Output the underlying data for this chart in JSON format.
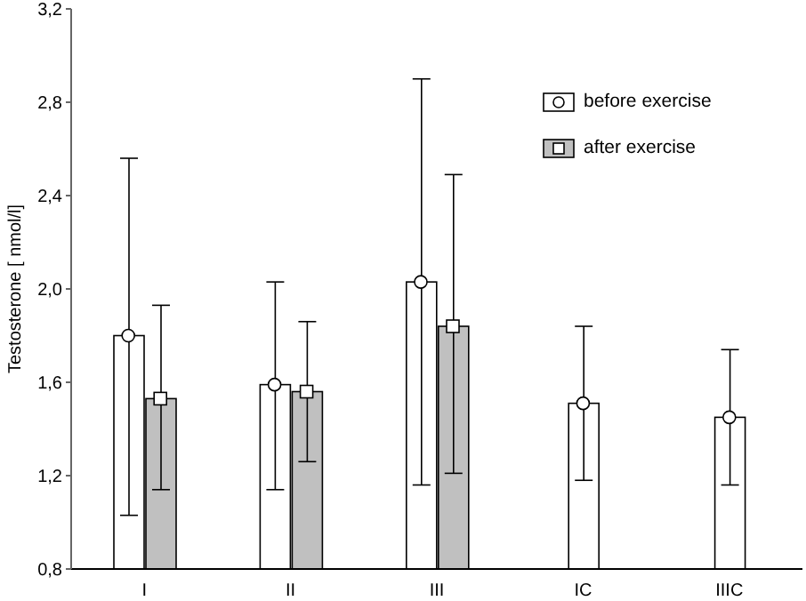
{
  "chart_data": {
    "type": "bar",
    "ylabel": "Testosterone [ nmol/l]",
    "categories": [
      "I",
      "II",
      "III",
      "IC",
      "IIIC"
    ],
    "series": [
      {
        "name": "before exercise",
        "color": "#ffffff",
        "marker": "circle",
        "values": [
          1.8,
          1.59,
          2.03,
          1.51,
          1.45
        ],
        "errors": [
          [
            1.03,
            2.56
          ],
          [
            1.14,
            2.03
          ],
          [
            1.16,
            2.9
          ],
          [
            1.18,
            1.84
          ],
          [
            1.16,
            1.74
          ]
        ]
      },
      {
        "name": "after exercise",
        "color": "#c0c0c0",
        "marker": "square",
        "values": [
          1.53,
          1.56,
          1.84,
          null,
          null
        ],
        "errors": [
          [
            1.14,
            1.93
          ],
          [
            1.26,
            1.86
          ],
          [
            1.21,
            2.49
          ],
          null,
          null
        ]
      },
      {
        "type": "scatter",
        "color": "#ffffff",
        "marker": "circle",
        "x": [
          "I",
          "II",
          "III",
          "IC",
          "IIIC"
        ],
        "values": [
          1.8,
          1.59,
          2.03,
          1.51,
          1.45
        ]
      },
      {
        "type": "scatter",
        "color": "#ffffff",
        "marker": "square",
        "x": [
          "I",
          "II",
          "III",
          "IC",
          "IIIC"
        ],
        "values": [
          1.53,
          1.56,
          1.84,
          null,
          null
        ]
      }
    ],
    "ylim": [
      0.8,
      3.2
    ],
    "yticks": [
      {
        "value": 0.8,
        "label": "0,8"
      },
      {
        "value": 1.2,
        "label": "1,2"
      },
      {
        "value": 1.6,
        "label": "1,6"
      },
      {
        "value": 2.0,
        "label": "2,0"
      },
      {
        "value": 2.4,
        "label": "2,4"
      },
      {
        "value": 2.8,
        "label": "2,8"
      },
      {
        "value": 3.2,
        "label": "3,2"
      }
    ],
    "legend": "top right",
    "grid": false
  }
}
